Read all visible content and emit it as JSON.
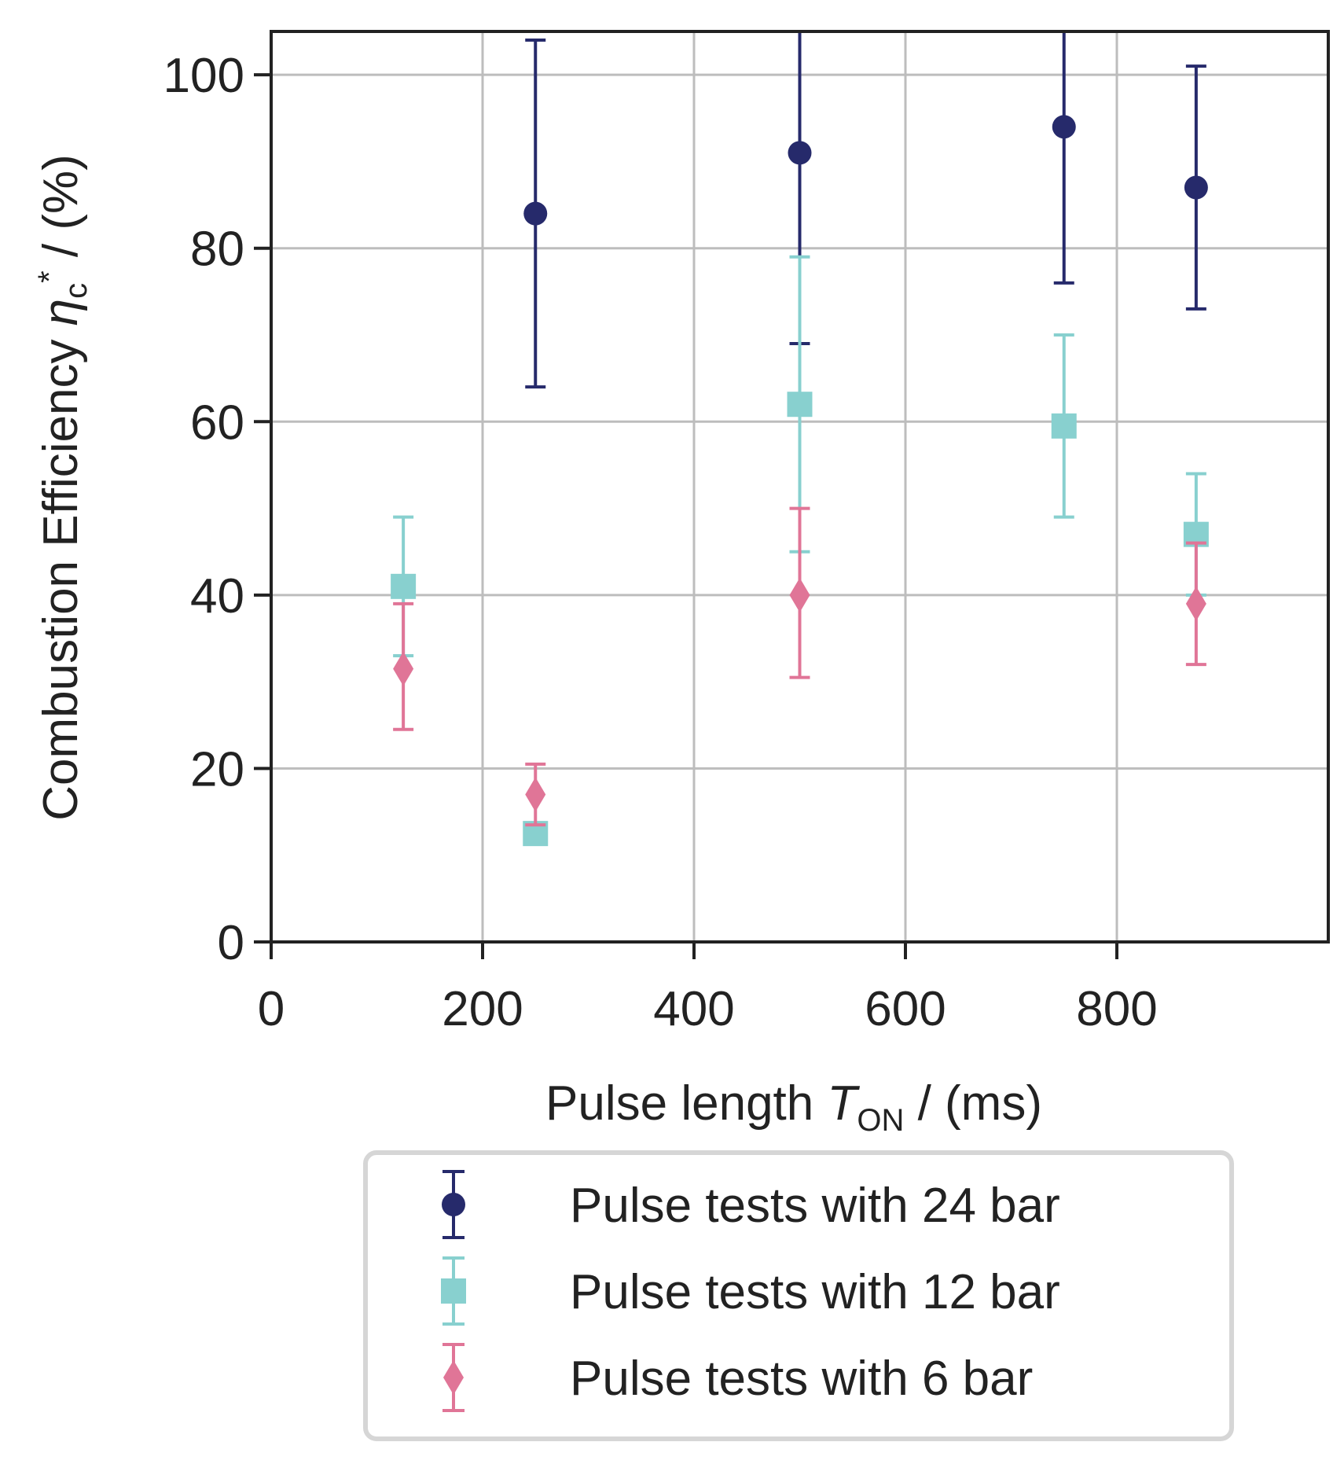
{
  "chart_data": {
    "type": "scatter",
    "title": "",
    "xlabel": {
      "prefix": "Pulse length ",
      "var": "T",
      "sub": "ON",
      "suffix": " / (ms)"
    },
    "ylabel": {
      "prefix": "Combustion Efficiency ",
      "var": "η",
      "sub": "c",
      "sup": "*",
      "suffix": " / (%)"
    },
    "xlim": [
      0,
      1000
    ],
    "ylim": [
      0,
      105
    ],
    "xticks": [
      0,
      200,
      400,
      600,
      800
    ],
    "yticks": [
      0,
      20,
      40,
      60,
      80,
      100
    ],
    "grid": true,
    "legend_position": "below",
    "series": [
      {
        "name": "Pulse tests with 24 bar",
        "marker": "circle",
        "color": "#262a6b",
        "points": [
          {
            "x": 250,
            "y": 84,
            "lo": 64,
            "hi": 104
          },
          {
            "x": 500,
            "y": 91,
            "lo": 69,
            "hi": 106
          },
          {
            "x": 750,
            "y": 94,
            "lo": 76,
            "hi": 106
          },
          {
            "x": 875,
            "y": 87,
            "lo": 73,
            "hi": 101
          }
        ]
      },
      {
        "name": "Pulse tests with 12 bar",
        "marker": "square",
        "color": "#88d0cf",
        "points": [
          {
            "x": 125,
            "y": 41,
            "lo": 33,
            "hi": 49
          },
          {
            "x": 250,
            "y": 12.5,
            "lo": 12.5,
            "hi": 12.5
          },
          {
            "x": 500,
            "y": 62,
            "lo": 45,
            "hi": 79
          },
          {
            "x": 750,
            "y": 59.5,
            "lo": 49,
            "hi": 70
          },
          {
            "x": 875,
            "y": 47,
            "lo": 40,
            "hi": 54
          }
        ]
      },
      {
        "name": "Pulse tests with 6 bar",
        "marker": "diamond",
        "color": "#e07597",
        "points": [
          {
            "x": 125,
            "y": 31.5,
            "lo": 24.5,
            "hi": 39
          },
          {
            "x": 250,
            "y": 17,
            "lo": 13.5,
            "hi": 20.5
          },
          {
            "x": 500,
            "y": 40,
            "lo": 30.5,
            "hi": 50
          },
          {
            "x": 875,
            "y": 39,
            "lo": 32,
            "hi": 46
          }
        ]
      }
    ]
  },
  "colors": {
    "axis": "#222222",
    "grid": "#bdbdbd",
    "legend_border": "#d6d6d6"
  }
}
